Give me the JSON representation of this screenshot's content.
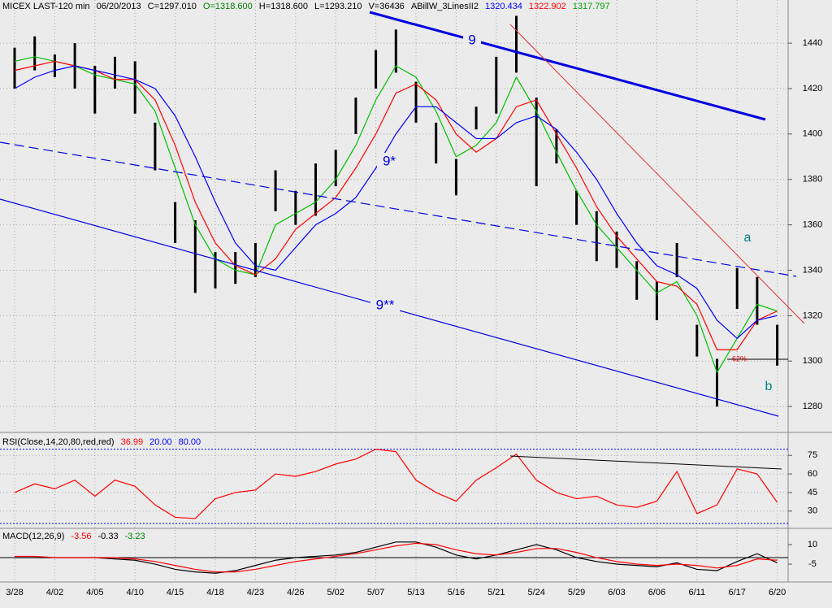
{
  "chart_data": [
    {
      "type": "range",
      "header": [
        {
          "text": "MICEX LAST-120 min",
          "color": "#000000"
        },
        {
          "text": "06/20/2013",
          "color": "#000000"
        },
        {
          "text": "C=1297.010",
          "color": "#000000"
        },
        {
          "text": "O=1318.600",
          "color": "#008000"
        },
        {
          "text": "H=1318.600",
          "color": "#000000"
        },
        {
          "text": "L=1293.210",
          "color": "#000000"
        },
        {
          "text": "V=36436",
          "color": "#000000"
        },
        {
          "text": "ABillW_3LinesII2",
          "color": "#000000"
        },
        {
          "text": "1320.434",
          "color": "#0000ff"
        },
        {
          "text": "1322.902",
          "color": "#ff0000"
        },
        {
          "text": "1317.797",
          "color": "#00a000"
        }
      ],
      "annotations": [
        "9",
        "9*",
        "9**",
        "a",
        "b",
        "62%"
      ],
      "categories": [
        "3/28",
        null,
        "4/02",
        null,
        "4/05",
        null,
        "4/10",
        null,
        "4/15",
        null,
        "4/18",
        null,
        "4/23",
        null,
        "4/26",
        null,
        "5/02",
        null,
        "5/07",
        null,
        "5/13",
        null,
        "5/16",
        null,
        "5/21",
        null,
        "5/24",
        null,
        "5/29",
        null,
        "6/03",
        null,
        "6/06",
        null,
        "6/11",
        null,
        "6/17",
        null,
        "6/20"
      ],
      "high": [
        1438,
        1443,
        1435,
        1440,
        1430,
        1434,
        1432,
        1405,
        1370,
        1362,
        1348,
        1348,
        1352,
        1384,
        1375,
        1387,
        1393,
        1416,
        1437,
        1446,
        1423,
        1405,
        1389,
        1412,
        1434,
        1452,
        1416,
        1402,
        1375,
        1366,
        1357,
        1344,
        1335,
        1352,
        1316,
        1301,
        1341,
        1337,
        1316
      ],
      "low": [
        1420,
        1428,
        1425,
        1420,
        1409,
        1420,
        1409,
        1384,
        1352,
        1330,
        1332,
        1334,
        1337,
        1366,
        1360,
        1364,
        1377,
        1400,
        1420,
        1427,
        1405,
        1387,
        1373,
        1402,
        1409,
        1427,
        1377,
        1387,
        1360,
        1344,
        1341,
        1327,
        1318,
        1337,
        1302,
        1280,
        1323,
        1316,
        1298
      ],
      "bar_color": "#000000",
      "lines": [
        {
          "color": "#00c000",
          "values": [
            1432,
            1434,
            1432,
            1430,
            1426,
            1424,
            1422,
            1410,
            1385,
            1360,
            1345,
            1340,
            1338,
            1360,
            1365,
            1370,
            1380,
            1395,
            1415,
            1430,
            1425,
            1410,
            1390,
            1395,
            1405,
            1425,
            1410,
            1392,
            1375,
            1360,
            1350,
            1340,
            1330,
            1335,
            1320,
            1295,
            1310,
            1325,
            1322
          ]
        },
        {
          "color": "#ff0000",
          "values": [
            1428,
            1430,
            1432,
            1430,
            1428,
            1424,
            1424,
            1415,
            1395,
            1370,
            1352,
            1342,
            1338,
            1345,
            1358,
            1365,
            1372,
            1385,
            1400,
            1418,
            1422,
            1415,
            1400,
            1392,
            1398,
            1412,
            1415,
            1400,
            1385,
            1368,
            1355,
            1345,
            1335,
            1333,
            1325,
            1305,
            1305,
            1318,
            1322
          ]
        },
        {
          "color": "#0000ff",
          "values": [
            1420,
            1425,
            1428,
            1430,
            1428,
            1426,
            1424,
            1420,
            1408,
            1390,
            1370,
            1352,
            1342,
            1340,
            1350,
            1360,
            1365,
            1372,
            1385,
            1400,
            1412,
            1412,
            1405,
            1398,
            1398,
            1405,
            1408,
            1402,
            1392,
            1380,
            1365,
            1352,
            1342,
            1338,
            1332,
            1318,
            1310,
            1318,
            1320
          ]
        }
      ],
      "ylim": [
        1269.3,
        1459
      ],
      "yticks": [
        1280,
        1300,
        1320,
        1340,
        1360,
        1380,
        1400,
        1420,
        1440
      ],
      "grid": true
    },
    {
      "type": "line",
      "header": [
        {
          "text": "RSI(Close,14,20,80,red,red)",
          "color": "#000000"
        },
        {
          "text": "36.99",
          "color": "#ff0000"
        },
        {
          "text": "20.00",
          "color": "#0000ff"
        },
        {
          "text": "80.00",
          "color": "#0000ff"
        }
      ],
      "levels": [
        20,
        80
      ],
      "level_color": "#0000ff",
      "lines": [
        {
          "color": "#ff0000",
          "values": [
            45,
            52,
            48,
            55,
            42,
            55,
            50,
            35,
            25,
            24,
            40,
            45,
            47,
            60,
            58,
            62,
            68,
            72,
            80,
            78,
            55,
            45,
            38,
            55,
            65,
            76,
            55,
            45,
            40,
            42,
            35,
            33,
            38,
            62,
            28,
            35,
            64,
            60,
            37
          ]
        }
      ],
      "ylim": [
        17.4,
        92.2
      ],
      "yticks": [
        30,
        45,
        60,
        75
      ],
      "grid": true
    },
    {
      "type": "line",
      "header": [
        {
          "text": "MACD(12,26,9)",
          "color": "#000000"
        },
        {
          "text": "-3.56",
          "color": "#ff0000"
        },
        {
          "text": "-0.33",
          "color": "#000000"
        },
        {
          "text": "-3.23",
          "color": "#008000"
        }
      ],
      "lines": [
        {
          "color": "#000000",
          "values": [
            0,
            0,
            0,
            0,
            0,
            -1,
            -2,
            -5,
            -9,
            -11,
            -12,
            -10,
            -6,
            -2,
            0,
            1,
            2,
            4,
            8,
            12,
            12,
            8,
            2,
            -1,
            2,
            6,
            10,
            6,
            0,
            -3,
            -5,
            -6,
            -7,
            -4,
            -9,
            -10,
            -3,
            3,
            -4
          ]
        },
        {
          "color": "#ff0000",
          "values": [
            1,
            1,
            0,
            0,
            0,
            0,
            -1,
            -3,
            -6,
            -9,
            -11,
            -11,
            -9,
            -6,
            -3,
            -1,
            1,
            3,
            6,
            9,
            11,
            10,
            6,
            3,
            2,
            4,
            7,
            7,
            4,
            0,
            -3,
            -5,
            -6,
            -5,
            -6,
            -8,
            -6,
            -1,
            -2
          ]
        }
      ],
      "ylim": [
        -18.1,
        21.25
      ],
      "yticks": [
        -5,
        10
      ],
      "grid": false
    }
  ]
}
